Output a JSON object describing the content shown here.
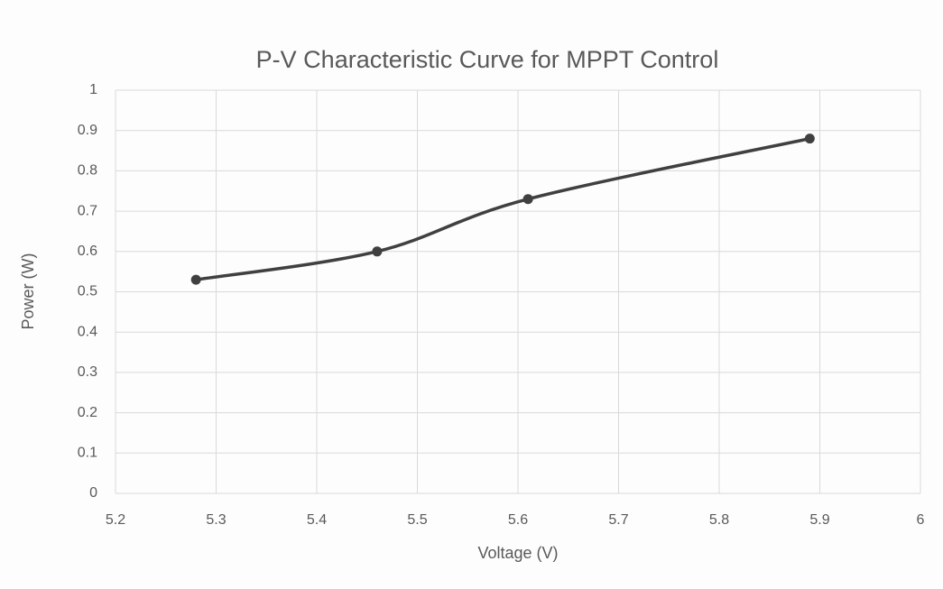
{
  "chart_data": {
    "type": "scatter",
    "title": "P-V Characteristic Curve for MPPT Control",
    "x_label": "Voltage (V)",
    "y_label": "Power (W)",
    "x": [
      5.28,
      5.46,
      5.61,
      5.89
    ],
    "values": [
      0.53,
      0.6,
      0.73,
      0.88
    ],
    "color": "#404040",
    "smooth": true,
    "markers": true,
    "xlim": [
      5.2,
      6
    ],
    "xticks": [
      5.2,
      5.3,
      5.4,
      5.5,
      5.6,
      5.7,
      5.8,
      5.9,
      6
    ],
    "ylim": [
      0,
      1
    ],
    "yticks": [
      0,
      0.1,
      0.2,
      0.3,
      0.4,
      0.5,
      0.6,
      0.7,
      0.8,
      0.9,
      1
    ],
    "grid": true
  }
}
